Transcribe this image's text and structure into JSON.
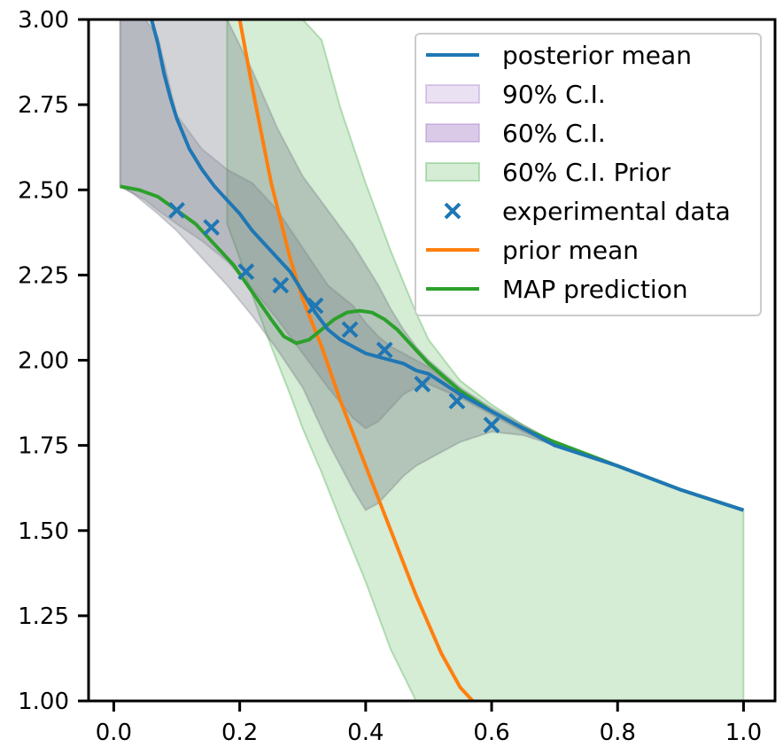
{
  "chart_data": {
    "type": "line",
    "title": "",
    "xlabel": "",
    "ylabel": "",
    "xlim": [
      -0.04,
      1.05
    ],
    "ylim": [
      1.0,
      3.0
    ],
    "x_ticks": [
      "0.0",
      "0.2",
      "0.4",
      "0.6",
      "0.8",
      "1.0"
    ],
    "y_ticks": [
      "1.00",
      "1.25",
      "1.50",
      "1.75",
      "2.00",
      "2.25",
      "2.50",
      "2.75",
      "3.00"
    ],
    "grid": false,
    "legend_position": "top-right",
    "colors": {
      "posterior_mean": "#1f77b4",
      "ci90": "#9467bd",
      "ci60": "#9467bd",
      "prior_band": "#2ca02c",
      "experimental_data": "#1f77b4",
      "prior_mean": "#ff7f0e",
      "map_prediction": "#2ca02c"
    },
    "legend": [
      {
        "label": "posterior mean",
        "kind": "line",
        "key": "posterior_mean"
      },
      {
        "label": "90% C.I.",
        "kind": "patch",
        "key": "ci90"
      },
      {
        "label": "60% C.I.",
        "kind": "patch",
        "key": "ci60"
      },
      {
        "label": "60% C.I. Prior",
        "kind": "patch",
        "key": "prior_band"
      },
      {
        "label": "experimental data",
        "kind": "marker",
        "key": "experimental_data"
      },
      {
        "label": "prior mean",
        "kind": "line",
        "key": "prior_mean"
      },
      {
        "label": "MAP prediction",
        "kind": "line",
        "key": "map_prediction"
      }
    ],
    "posterior_mean": {
      "x": [
        0.06,
        0.07,
        0.08,
        0.09,
        0.1,
        0.12,
        0.14,
        0.16,
        0.18,
        0.2,
        0.22,
        0.25,
        0.28,
        0.3,
        0.32,
        0.34,
        0.36,
        0.38,
        0.4,
        0.42,
        0.44,
        0.46,
        0.48,
        0.5,
        0.55,
        0.6,
        0.65,
        0.7,
        0.8,
        0.9,
        1.0
      ],
      "y": [
        3.0,
        2.93,
        2.84,
        2.77,
        2.71,
        2.62,
        2.56,
        2.51,
        2.47,
        2.43,
        2.38,
        2.32,
        2.26,
        2.2,
        2.14,
        2.09,
        2.06,
        2.04,
        2.02,
        2.01,
        2.0,
        1.99,
        1.97,
        1.96,
        1.9,
        1.85,
        1.8,
        1.75,
        1.69,
        1.62,
        1.56
      ]
    },
    "map_prediction": {
      "x": [
        0.01,
        0.04,
        0.07,
        0.1,
        0.13,
        0.16,
        0.19,
        0.22,
        0.25,
        0.27,
        0.29,
        0.31,
        0.33,
        0.35,
        0.37,
        0.39,
        0.41,
        0.43,
        0.45,
        0.48,
        0.5,
        0.55,
        0.6,
        0.65,
        0.7,
        0.8,
        0.9,
        1.0
      ],
      "y": [
        2.51,
        2.5,
        2.48,
        2.44,
        2.4,
        2.34,
        2.28,
        2.2,
        2.12,
        2.07,
        2.05,
        2.06,
        2.09,
        2.12,
        2.14,
        2.145,
        2.14,
        2.12,
        2.09,
        2.03,
        1.99,
        1.91,
        1.85,
        1.8,
        1.76,
        1.69,
        1.62,
        1.56
      ]
    },
    "prior_mean": {
      "x": [
        0.2,
        0.22,
        0.25,
        0.28,
        0.3,
        0.33,
        0.36,
        0.4,
        0.44,
        0.48,
        0.52,
        0.55,
        0.57
      ],
      "y": [
        3.0,
        2.8,
        2.52,
        2.3,
        2.18,
        2.04,
        1.88,
        1.69,
        1.5,
        1.31,
        1.14,
        1.04,
        1.0
      ]
    },
    "prior_ci60": {
      "x": [
        0.18,
        0.2,
        0.22,
        0.25,
        0.28,
        0.3,
        0.33,
        0.36,
        0.4,
        0.44,
        0.48,
        0.5,
        0.55,
        0.6,
        0.65,
        0.7,
        0.8,
        0.9,
        1.0
      ],
      "upper": [
        3.0,
        3.0,
        3.0,
        3.0,
        3.0,
        3.0,
        2.94,
        2.74,
        2.52,
        2.32,
        2.14,
        2.06,
        1.94,
        1.87,
        1.81,
        1.76,
        1.69,
        1.62,
        1.56
      ],
      "lower": [
        2.4,
        2.3,
        2.19,
        2.04,
        1.9,
        1.8,
        1.67,
        1.53,
        1.35,
        1.15,
        1.0,
        1.0,
        1.0,
        1.0,
        1.0,
        1.0,
        1.0,
        1.0,
        1.0
      ]
    },
    "ci90": {
      "x": [
        0.01,
        0.03,
        0.05,
        0.07,
        0.1,
        0.14,
        0.18,
        0.22,
        0.26,
        0.3,
        0.34,
        0.38,
        0.4,
        0.42,
        0.44,
        0.46,
        0.48,
        0.5,
        0.55,
        0.6,
        0.65,
        0.7,
        0.8,
        0.9,
        1.0
      ],
      "upper": [
        3.0,
        3.0,
        3.0,
        3.0,
        3.0,
        3.0,
        3.0,
        2.85,
        2.68,
        2.54,
        2.44,
        2.34,
        2.28,
        2.22,
        2.15,
        2.09,
        2.04,
        2.0,
        1.92,
        1.86,
        1.81,
        1.76,
        1.69,
        1.62,
        1.56
      ],
      "lower": [
        2.51,
        2.49,
        2.46,
        2.43,
        2.38,
        2.3,
        2.22,
        2.13,
        2.03,
        1.92,
        1.76,
        1.62,
        1.56,
        1.58,
        1.62,
        1.66,
        1.69,
        1.71,
        1.76,
        1.79,
        1.78,
        1.75,
        1.69,
        1.62,
        1.56
      ]
    },
    "ci60": {
      "x": [
        0.01,
        0.03,
        0.05,
        0.07,
        0.1,
        0.14,
        0.18,
        0.22,
        0.26,
        0.3,
        0.34,
        0.38,
        0.4,
        0.42,
        0.44,
        0.46,
        0.48,
        0.5,
        0.55,
        0.6,
        0.65,
        0.7,
        0.8,
        0.9,
        1.0
      ],
      "upper": [
        3.0,
        3.0,
        3.0,
        2.95,
        2.72,
        2.62,
        2.56,
        2.52,
        2.44,
        2.33,
        2.22,
        2.16,
        2.11,
        2.07,
        2.04,
        2.02,
        2.0,
        1.98,
        1.91,
        1.85,
        1.8,
        1.75,
        1.69,
        1.62,
        1.56
      ],
      "lower": [
        2.51,
        2.49,
        2.47,
        2.44,
        2.4,
        2.35,
        2.29,
        2.21,
        2.12,
        2.02,
        1.92,
        1.83,
        1.8,
        1.82,
        1.86,
        1.9,
        1.92,
        1.93,
        1.89,
        1.84,
        1.79,
        1.75,
        1.69,
        1.62,
        1.56
      ]
    },
    "experimental_data": {
      "x": [
        0.1,
        0.155,
        0.21,
        0.265,
        0.32,
        0.375,
        0.43,
        0.49,
        0.545,
        0.6
      ],
      "y": [
        2.44,
        2.39,
        2.26,
        2.22,
        2.16,
        2.09,
        2.03,
        1.93,
        1.88,
        1.81
      ]
    }
  }
}
